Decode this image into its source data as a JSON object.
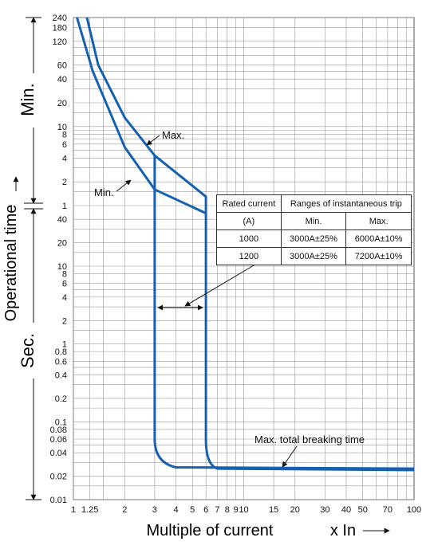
{
  "chart_data": {
    "type": "line",
    "title": "",
    "xlabel": "Multiple of current",
    "xunit": "x In",
    "ylabel": "Operational time",
    "x_scale": "log",
    "xlim": [
      1,
      100
    ],
    "x_ticks": [
      {
        "v": 1,
        "label": "1"
      },
      {
        "v": 1.25,
        "label": "1.25"
      },
      {
        "v": 2,
        "label": "2"
      },
      {
        "v": 3,
        "label": "3"
      },
      {
        "v": 4,
        "label": "4"
      },
      {
        "v": 5,
        "label": "5"
      },
      {
        "v": 6,
        "label": "6"
      },
      {
        "v": 7,
        "label": "7"
      },
      {
        "v": 8,
        "label": "8"
      },
      {
        "v": 9,
        "label": "9"
      },
      {
        "v": 10,
        "label": "10"
      },
      {
        "v": 15,
        "label": "15"
      },
      {
        "v": 20,
        "label": "20"
      },
      {
        "v": 30,
        "label": "30"
      },
      {
        "v": 40,
        "label": "40"
      },
      {
        "v": 50,
        "label": "50"
      },
      {
        "v": 70,
        "label": "70"
      },
      {
        "v": 100,
        "label": "100"
      }
    ],
    "y_scale": "log",
    "y_segments": {
      "minutes": {
        "label": "Min.",
        "range": [
          1,
          240
        ],
        "ticks": [
          "240",
          "180",
          "120",
          "60",
          "40",
          "20",
          "10",
          "8",
          "6",
          "4",
          "2",
          "1"
        ]
      },
      "seconds": {
        "label": "Sec.",
        "range": [
          0.01,
          60
        ],
        "ticks": [
          "40",
          "20",
          "10",
          "8",
          "6",
          "4",
          "2",
          "1",
          "0.8",
          "0.6",
          "0.4",
          "0.2",
          "0.1",
          "0.08",
          "0.06",
          "0.04",
          "0.02",
          "0.01"
        ]
      }
    },
    "grid": true,
    "series": [
      {
        "name": "Max.",
        "unit_note": "time in minutes then seconds",
        "points": [
          [
            1.2,
            240,
            "min"
          ],
          [
            1.4,
            60,
            "min"
          ],
          [
            2,
            13,
            "min"
          ],
          [
            3,
            4.3,
            "min"
          ],
          [
            6,
            1.3,
            "min"
          ],
          [
            6,
            0.04,
            "sec"
          ],
          [
            6.5,
            0.026,
            "sec"
          ],
          [
            8,
            0.025,
            "sec"
          ],
          [
            100,
            0.024,
            "sec"
          ]
        ]
      },
      {
        "name": "Min.",
        "unit_note": "time in minutes then seconds",
        "points": [
          [
            1.05,
            240,
            "min"
          ],
          [
            1.3,
            50,
            "min"
          ],
          [
            2,
            5.5,
            "min"
          ],
          [
            3,
            1.6,
            "min"
          ],
          [
            6,
            0.8,
            "min"
          ],
          [
            3,
            0.04,
            "sec"
          ],
          [
            3.5,
            0.028,
            "sec"
          ],
          [
            4,
            0.026,
            "sec"
          ],
          [
            10,
            0.026,
            "sec"
          ],
          [
            100,
            0.025,
            "sec"
          ]
        ]
      }
    ],
    "annotations": [
      "Max.",
      "Min.",
      "Max. total breaking time"
    ]
  },
  "table": {
    "header_left": "Rated current",
    "header_right": "Ranges of instantaneous trip",
    "unit": "(A)",
    "col_min": "Min.",
    "col_max": "Max.",
    "rows": [
      {
        "rated": "1000",
        "min": "3000A±25%",
        "max": "6000A±10%"
      },
      {
        "rated": "1200",
        "min": "3000A±25%",
        "max": "7200A±10%"
      }
    ]
  },
  "side_labels": {
    "min": "Min.",
    "sec": "Sec.",
    "operational_time": "Operational time"
  },
  "colors": {
    "curve": "#1660b0",
    "grid": "#999999",
    "text": "#111111"
  }
}
